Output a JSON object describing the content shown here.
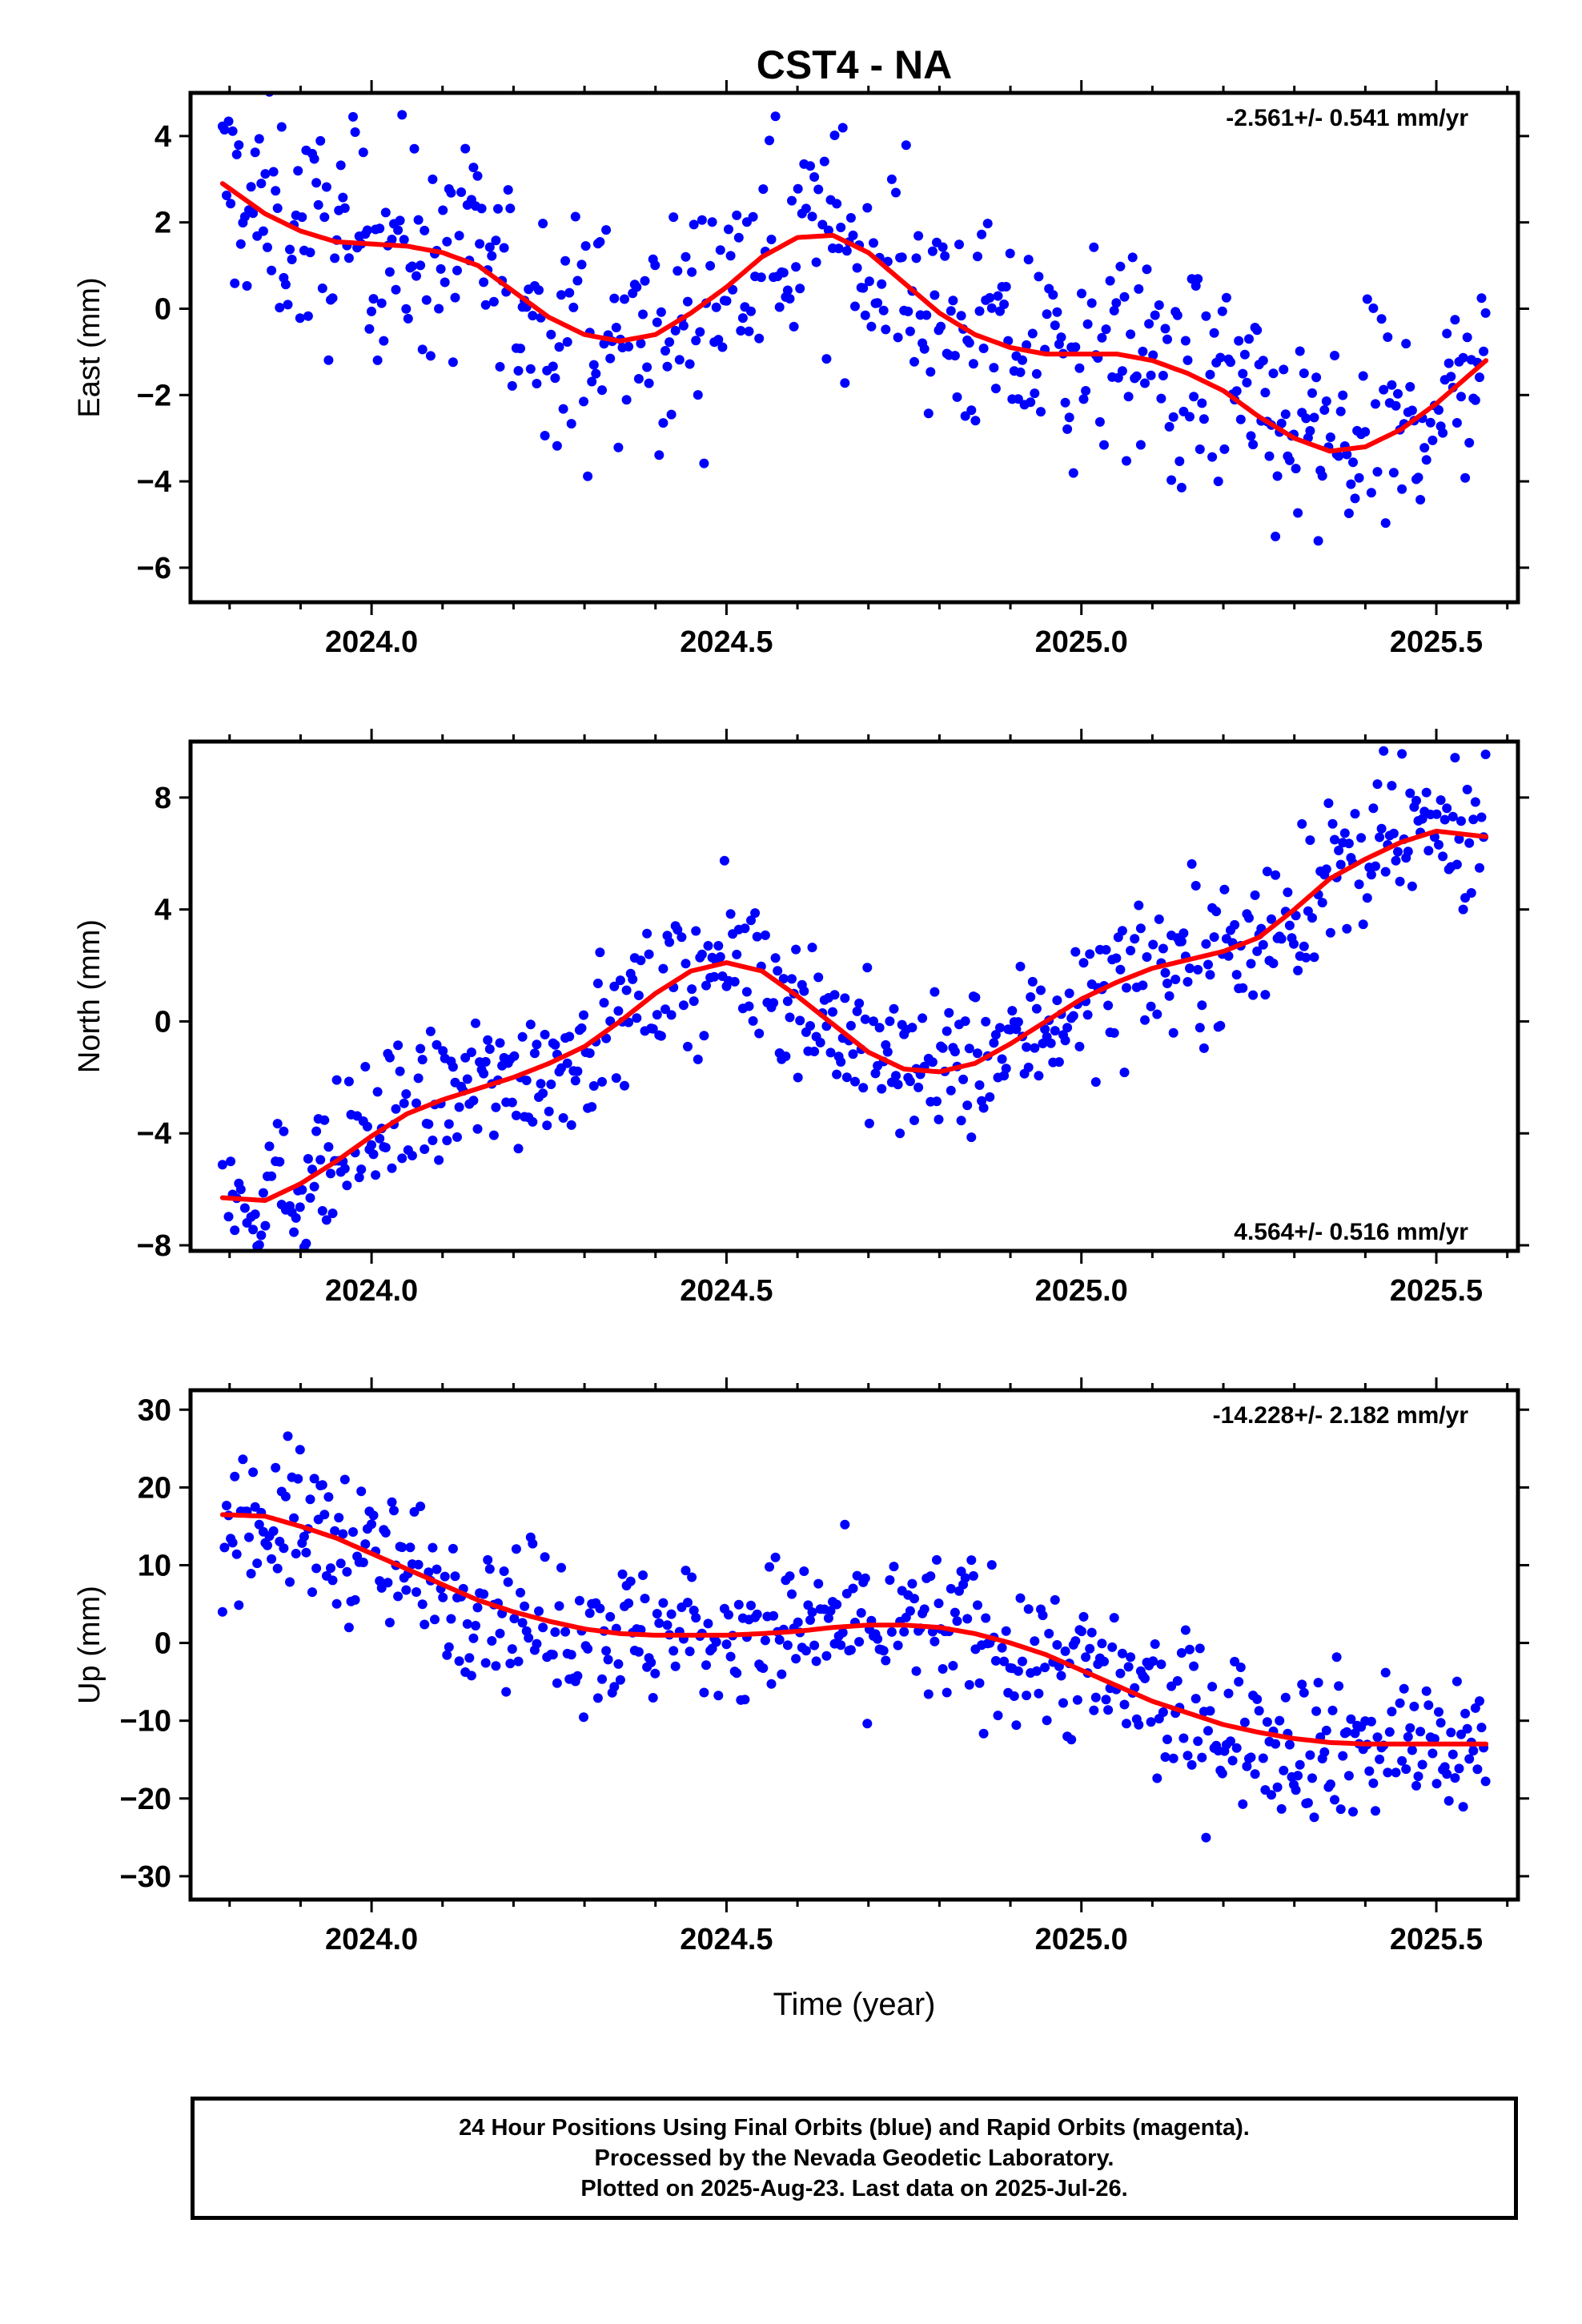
{
  "title": "CST4 - NA",
  "x_axis_label": "Time (year)",
  "colors": {
    "points": "#0000ff",
    "fit": "#ff0000",
    "frame": "#000000",
    "rapid_orbits": "#ff00ff"
  },
  "footer": {
    "line1": "24 Hour Positions Using Final Orbits (blue) and Rapid Orbits (magenta).",
    "line2": "Processed by the Nevada Geodetic Laboratory.",
    "line3": "Plotted on 2025-Aug-23. Last data on 2025-Jul-26."
  },
  "chart_data": [
    {
      "type": "scatter",
      "component": "east",
      "ylabel": "East (mm)",
      "rate_label": "-2.561+/- 0.541 mm/yr",
      "xlim": [
        2023.745,
        2025.615
      ],
      "ylim": [
        -6.8,
        5.0
      ],
      "yticks": [
        -6,
        -4,
        -2,
        0,
        2,
        4
      ],
      "xticks": [
        2024.0,
        2024.5,
        2025.0,
        2025.5
      ],
      "xtick_labels": [
        "2024.0",
        "2024.5",
        "2025.0",
        "2025.5"
      ],
      "date_range": [
        2023.79,
        2025.57
      ],
      "fit_curve": {
        "x": [
          2023.79,
          2023.85,
          2023.9,
          2023.95,
          2024.0,
          2024.05,
          2024.1,
          2024.15,
          2024.2,
          2024.25,
          2024.3,
          2024.35,
          2024.4,
          2024.45,
          2024.5,
          2024.55,
          2024.6,
          2024.65,
          2024.7,
          2024.75,
          2024.8,
          2024.85,
          2024.9,
          2024.95,
          2025.0,
          2025.05,
          2025.1,
          2025.15,
          2025.2,
          2025.25,
          2025.3,
          2025.35,
          2025.4,
          2025.45,
          2025.5,
          2025.57
        ],
        "y": [
          2.9,
          2.2,
          1.8,
          1.55,
          1.5,
          1.45,
          1.3,
          1.0,
          0.4,
          -0.2,
          -0.6,
          -0.75,
          -0.6,
          -0.1,
          0.5,
          1.2,
          1.65,
          1.7,
          1.3,
          0.6,
          -0.1,
          -0.6,
          -0.9,
          -1.05,
          -1.05,
          -1.05,
          -1.2,
          -1.5,
          -1.9,
          -2.5,
          -3.0,
          -3.3,
          -3.2,
          -2.8,
          -2.2,
          -1.2
        ]
      },
      "scatter_amplitude": 1.25
    },
    {
      "type": "scatter",
      "component": "north",
      "ylabel": "North (mm)",
      "rate_label": "4.564+/- 0.516 mm/yr",
      "xlim": [
        2023.745,
        2025.615
      ],
      "ylim": [
        -8.2,
        10.0
      ],
      "yticks": [
        -8,
        -4,
        0,
        4,
        8
      ],
      "xticks": [
        2024.0,
        2024.5,
        2025.0,
        2025.5
      ],
      "xtick_labels": [
        "2024.0",
        "2024.5",
        "2025.0",
        "2025.5"
      ],
      "date_range": [
        2023.79,
        2025.57
      ],
      "fit_curve": {
        "x": [
          2023.79,
          2023.85,
          2023.9,
          2023.95,
          2024.0,
          2024.05,
          2024.1,
          2024.15,
          2024.2,
          2024.25,
          2024.3,
          2024.35,
          2024.4,
          2024.45,
          2024.5,
          2024.55,
          2024.6,
          2024.65,
          2024.7,
          2024.75,
          2024.8,
          2024.85,
          2024.9,
          2024.95,
          2025.0,
          2025.05,
          2025.1,
          2025.15,
          2025.2,
          2025.25,
          2025.3,
          2025.35,
          2025.4,
          2025.45,
          2025.5,
          2025.57
        ],
        "y": [
          -6.3,
          -6.4,
          -5.8,
          -5.0,
          -4.1,
          -3.3,
          -2.8,
          -2.4,
          -2.0,
          -1.5,
          -0.9,
          0.0,
          1.0,
          1.8,
          2.1,
          1.8,
          0.9,
          -0.1,
          -1.1,
          -1.7,
          -1.8,
          -1.5,
          -0.8,
          0.0,
          0.8,
          1.4,
          1.9,
          2.2,
          2.5,
          3.0,
          4.0,
          5.1,
          5.8,
          6.4,
          6.8,
          6.6
        ]
      },
      "scatter_amplitude": 1.3
    },
    {
      "type": "scatter",
      "component": "up",
      "ylabel": "Up (mm)",
      "rate_label": "-14.228+/- 2.182 mm/yr",
      "xlim": [
        2023.745,
        2025.615
      ],
      "ylim": [
        -33.0,
        32.5
      ],
      "yticks": [
        -30,
        -20,
        -10,
        0,
        10,
        20,
        30
      ],
      "xticks": [
        2024.0,
        2024.5,
        2025.0,
        2025.5
      ],
      "xtick_labels": [
        "2024.0",
        "2024.5",
        "2025.0",
        "2025.5"
      ],
      "date_range": [
        2023.79,
        2025.57
      ],
      "fit_curve": {
        "x": [
          2023.79,
          2023.85,
          2023.9,
          2023.95,
          2024.0,
          2024.05,
          2024.1,
          2024.15,
          2024.2,
          2024.25,
          2024.3,
          2024.35,
          2024.4,
          2024.45,
          2024.5,
          2024.55,
          2024.6,
          2024.65,
          2024.7,
          2024.75,
          2024.8,
          2024.85,
          2024.9,
          2024.95,
          2025.0,
          2025.05,
          2025.1,
          2025.15,
          2025.2,
          2025.25,
          2025.3,
          2025.35,
          2025.4,
          2025.45,
          2025.5,
          2025.57
        ],
        "y": [
          16.5,
          16.3,
          15.0,
          13.5,
          11.5,
          9.5,
          7.5,
          5.5,
          4.0,
          2.8,
          1.8,
          1.2,
          1.0,
          1.0,
          1.0,
          1.2,
          1.5,
          2.0,
          2.3,
          2.3,
          2.0,
          1.2,
          0.0,
          -1.5,
          -3.5,
          -5.5,
          -7.5,
          -9.0,
          -10.5,
          -11.5,
          -12.3,
          -12.8,
          -13.0,
          -13.0,
          -13.0,
          -13.0
        ]
      },
      "scatter_amplitude": 4.8
    }
  ]
}
